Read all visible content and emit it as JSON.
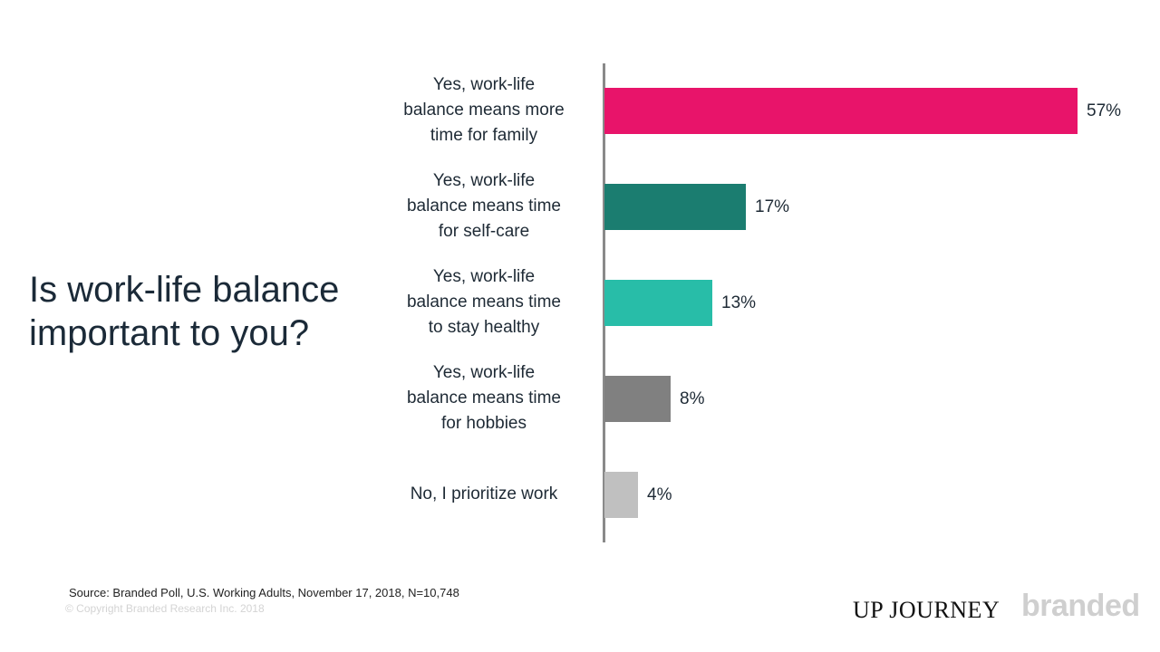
{
  "title": {
    "line1": "Is work-life balance",
    "line2": "important to you?"
  },
  "chart_data": {
    "type": "bar",
    "orientation": "horizontal",
    "title": "Is work-life balance important to you?",
    "xlabel": "",
    "ylabel": "",
    "categories": [
      "Yes, work-life balance means more time for family",
      "Yes, work-life balance means time for self-care",
      "Yes, work-life balance means time to stay healthy",
      "Yes, work-life balance means time for hobbies",
      "No, I prioritize work"
    ],
    "values": [
      57,
      17,
      13,
      8,
      4
    ],
    "value_labels": [
      "57%",
      "17%",
      "13%",
      "8%",
      "4%"
    ],
    "colors": [
      "#e8146a",
      "#1b7d70",
      "#28bda8",
      "#808080",
      "#c0c0c0"
    ],
    "unit": "%",
    "grid": false,
    "legend": "none"
  },
  "bars": [
    {
      "lines": [
        "Yes, work-life",
        "balance means more",
        "time for family"
      ],
      "label": "57%",
      "value": 57,
      "color": "#e8146a"
    },
    {
      "lines": [
        "Yes, work-life",
        "balance means time",
        "for self-care"
      ],
      "label": "17%",
      "value": 17,
      "color": "#1b7d70"
    },
    {
      "lines": [
        "Yes, work-life",
        "balance means time",
        "to stay healthy"
      ],
      "label": "13%",
      "value": 13,
      "color": "#28bda8"
    },
    {
      "lines": [
        "Yes, work-life",
        "balance means time",
        "for hobbies"
      ],
      "label": "8%",
      "value": 8,
      "color": "#808080"
    },
    {
      "lines": [
        "No, I prioritize work"
      ],
      "label": "4%",
      "value": 4,
      "color": "#c0c0c0"
    }
  ],
  "footer": {
    "source": "Source: Branded Poll, U.S. Working Adults, November 17, 2018, N=10,748",
    "copyright": "© Copyright Branded Research Inc. 2018"
  },
  "logos": {
    "upjourney": "UP JOURNEY",
    "branded": "branded"
  }
}
